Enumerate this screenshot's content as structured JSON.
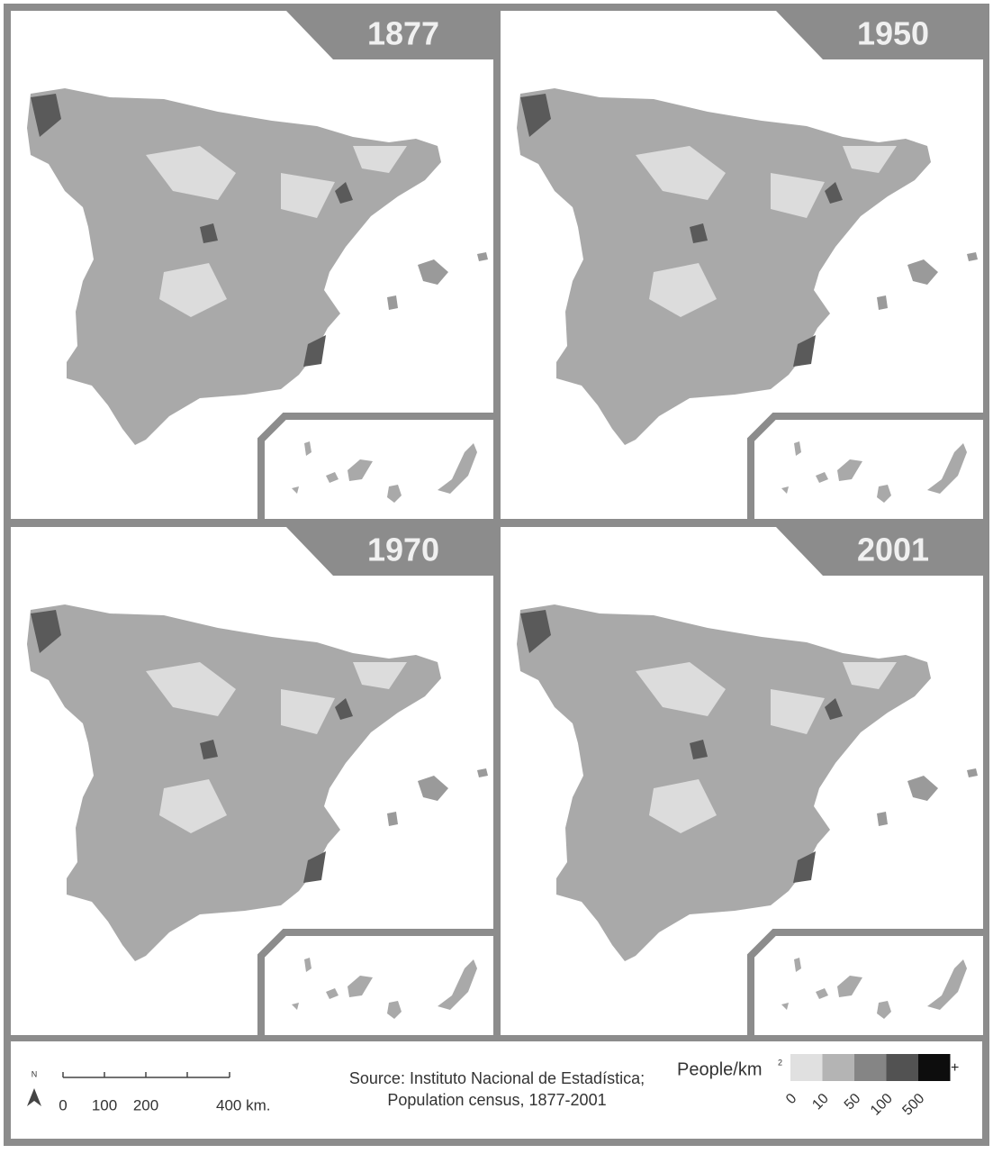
{
  "panels": [
    {
      "title": "1877"
    },
    {
      "title": "1950"
    },
    {
      "title": "1970"
    },
    {
      "title": "2001"
    }
  ],
  "footer": {
    "north": "N",
    "scale": {
      "labels": [
        "0",
        "100",
        "200",
        "400 km."
      ]
    },
    "source": [
      "Source: Instituto Nacional de Estadística;",
      "Population census, 1877-2001"
    ],
    "legend": {
      "title": "People/km",
      "superscript": "2",
      "overflow": "+",
      "ticks": [
        "0",
        "10",
        "50",
        "100",
        "500"
      ],
      "colors": [
        "#e0e0e0",
        "#b4b4b4",
        "#858585",
        "#525252",
        "#0d0d0d"
      ]
    }
  }
}
